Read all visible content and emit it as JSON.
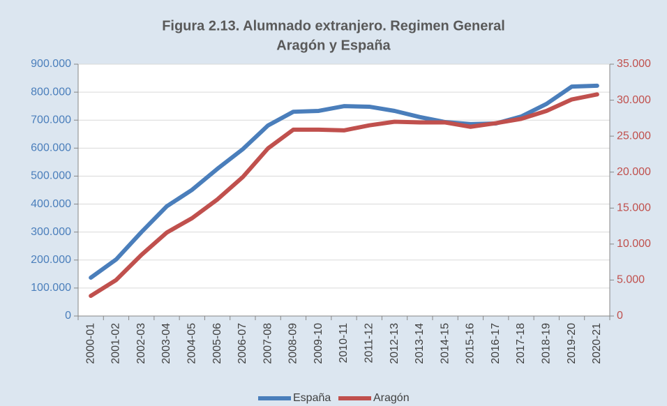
{
  "chart_data": {
    "type": "line",
    "title": "Figura 2.13. Alumnado extranjero. Regimen General",
    "subtitle": "Aragón y España",
    "categories": [
      "2000-01",
      "2001-02",
      "2002-03",
      "2003-04",
      "2004-05",
      "2005-06",
      "2006-07",
      "2007-08",
      "2008-09",
      "2009-10",
      "2010-11",
      "2011-12",
      "2012-13",
      "2013-14",
      "2014-15",
      "2015-16",
      "2016-17",
      "2017-18",
      "2018-19",
      "2019-20",
      "2020-21"
    ],
    "series": [
      {
        "name": "España",
        "color": "#4a7ebb",
        "values": [
          137000,
          202000,
          300000,
          392000,
          451000,
          526000,
          596000,
          681000,
          730000,
          733000,
          750000,
          748000,
          733000,
          711000,
          693000,
          686000,
          688000,
          713000,
          758000,
          820000,
          823000
        ]
      },
      {
        "name": "Aragón",
        "color": "#c0504d",
        "axis": "y2",
        "values": [
          2800,
          5000,
          8500,
          11600,
          13600,
          16200,
          19300,
          23300,
          25900,
          25900,
          25800,
          26500,
          27000,
          26900,
          26900,
          26300,
          26800,
          27400,
          28500,
          30100,
          30800
        ]
      }
    ],
    "ylim": [
      0,
      900000
    ],
    "yticks": [
      0,
      {
        "value": 100000,
        "label": "100.000"
      },
      {
        "value": 200000,
        "label": "200.000"
      },
      {
        "value": 300000,
        "label": "300.000"
      },
      {
        "value": 400000,
        "label": "400.000"
      },
      {
        "value": 500000,
        "label": "500.000"
      },
      {
        "value": 600000,
        "label": "600.000"
      },
      {
        "value": 700000,
        "label": "700.000"
      },
      {
        "value": 800000,
        "label": "800.000"
      },
      {
        "value": 900000,
        "label": "900.000"
      }
    ],
    "y2lim": [
      0,
      35000
    ],
    "y2ticks": [
      0,
      {
        "value": 5000,
        "label": "5.000"
      },
      {
        "value": 10000,
        "label": "10.000"
      },
      {
        "value": 15000,
        "label": "15.000"
      },
      {
        "value": 20000,
        "label": "20.000"
      },
      {
        "value": 25000,
        "label": "25.000"
      },
      {
        "value": 30000,
        "label": "30.000"
      },
      {
        "value": 35000,
        "label": "35.000"
      }
    ],
    "yaxis_color": "#4a7ebb",
    "y2axis_color": "#c0504d",
    "grid": true,
    "legend": "bottom"
  }
}
